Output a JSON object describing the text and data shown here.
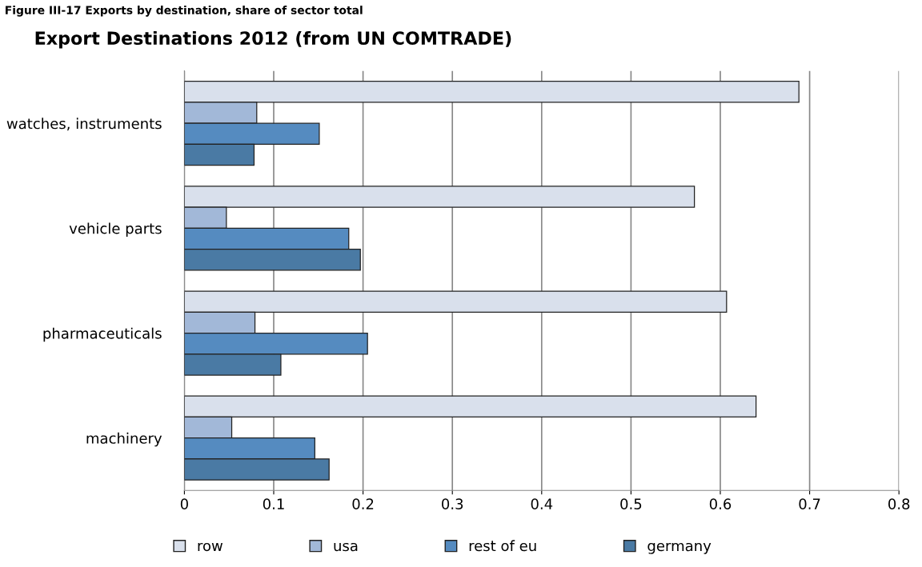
{
  "chart_data": {
    "type": "bar",
    "orientation": "horizontal",
    "title": "Export Destinations 2012 (from UN COMTRADE)",
    "annotations": [
      "Figure III-17 Exports by destination, share of sector total"
    ],
    "categories": [
      "watches, instruments",
      "vehicle parts",
      "pharmaceuticals",
      "machinery"
    ],
    "series": [
      {
        "name": "row",
        "color": "#d9e0ec",
        "values": [
          0.688,
          0.571,
          0.607,
          0.64
        ]
      },
      {
        "name": "usa",
        "color": "#a2b8d8",
        "values": [
          0.081,
          0.047,
          0.079,
          0.053
        ]
      },
      {
        "name": "rest of eu",
        "color": "#558bc0",
        "values": [
          0.151,
          0.184,
          0.205,
          0.146
        ]
      },
      {
        "name": "germany",
        "color": "#4a7aa4",
        "values": [
          0.078,
          0.197,
          0.108,
          0.162
        ]
      }
    ],
    "xlim": [
      0,
      0.8
    ],
    "xticks": [
      0,
      0.1,
      0.2,
      0.3,
      0.4,
      0.5,
      0.6,
      0.7,
      0.8
    ],
    "grid": "x",
    "legend": "bottom"
  }
}
